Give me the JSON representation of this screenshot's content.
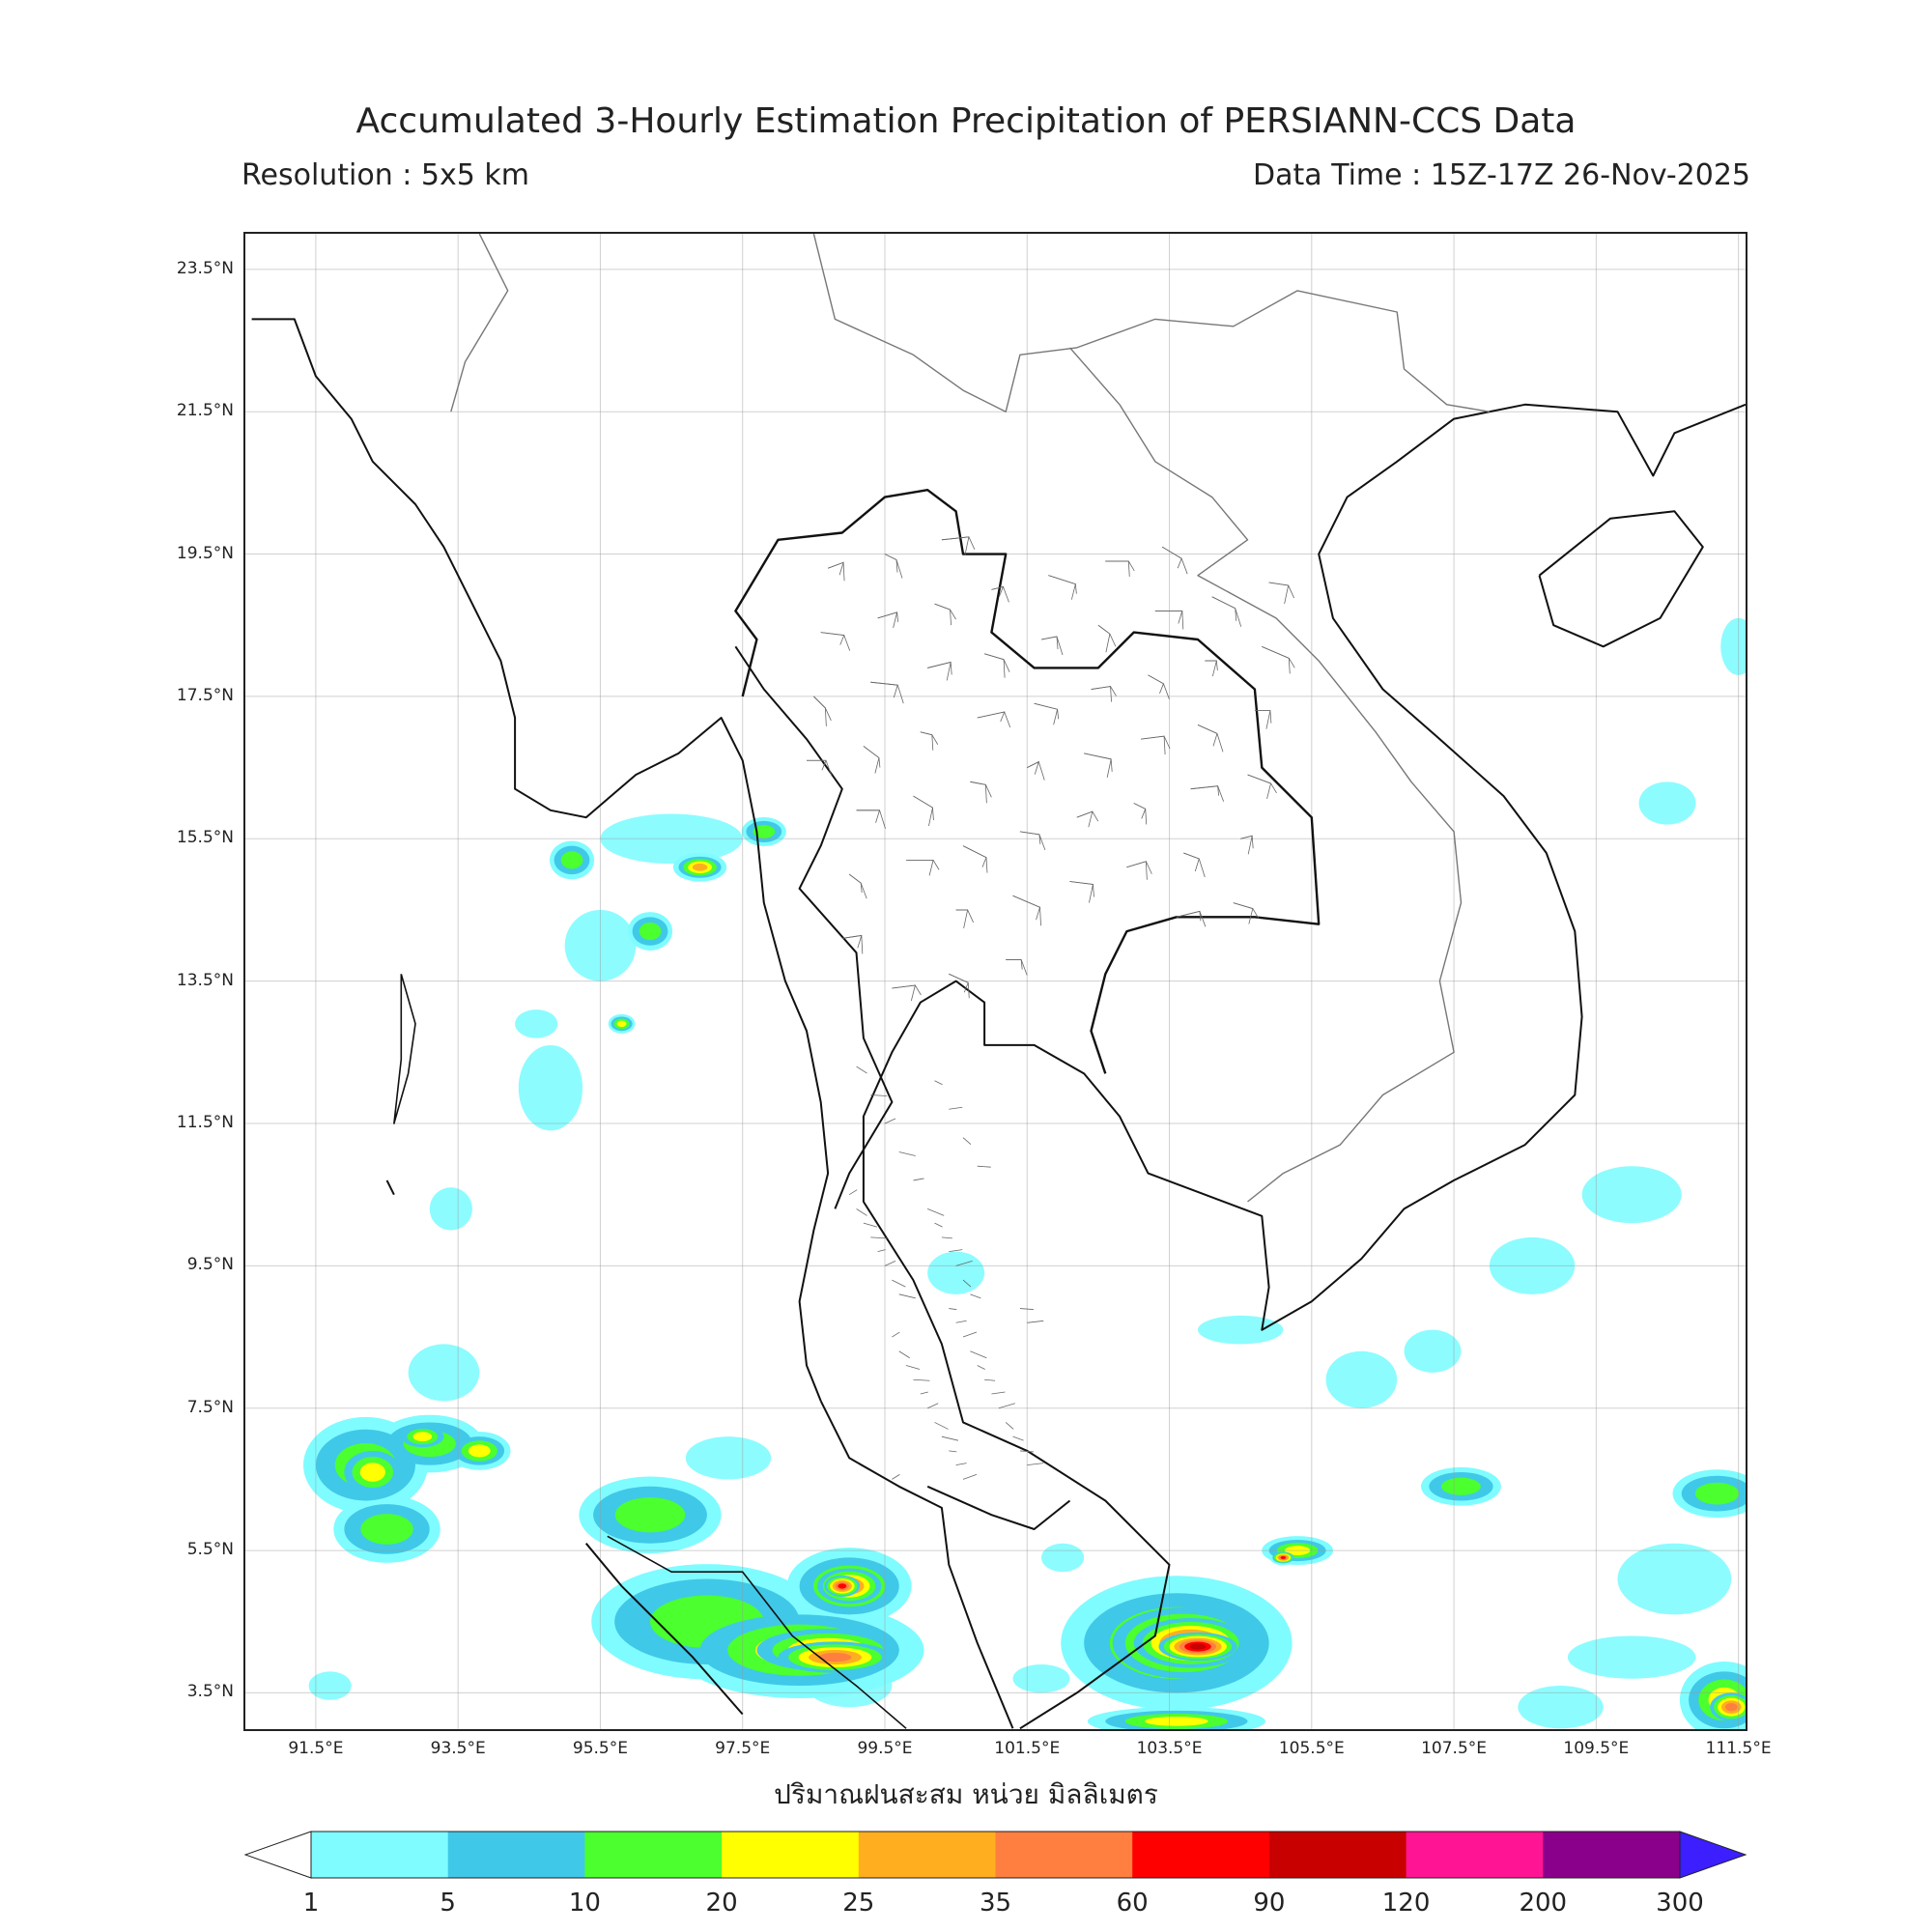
{
  "title": "Accumulated 3-Hourly Estimation Precipitation of PERSIANN-CCS Data",
  "resolution": "Resolution : 5x5 km",
  "data_time": "Data Time : 15Z-17Z 26-Nov-2025",
  "unit_label": "ปริมาณฝนสะสม หน่วย มิลลิเมตร",
  "map": {
    "lat_labels": [
      "23.5°N",
      "21.5°N",
      "19.5°N",
      "17.5°N",
      "15.5°N",
      "13.5°N",
      "11.5°N",
      "9.5°N",
      "7.5°N",
      "5.5°N",
      "3.5°N"
    ],
    "lon_labels": [
      "91.5°E",
      "93.5°E",
      "95.5°E",
      "97.5°E",
      "99.5°E",
      "101.5°E",
      "103.5°E",
      "105.5°E",
      "107.5°E",
      "109.5°E",
      "111.5°E"
    ],
    "lat_range": [
      2.99,
      24.0
    ],
    "lon_range": [
      90.51,
      111.6
    ],
    "grid": true
  },
  "colorbar": {
    "ticks": [
      "1",
      "5",
      "10",
      "20",
      "25",
      "35",
      "60",
      "90",
      "120",
      "200",
      "300"
    ],
    "colors": [
      "#7ffcff",
      "#40c8e8",
      "#4cff2e",
      "#ffff00",
      "#ffae20",
      "#ff7f40",
      "#ff0000",
      "#c80000",
      "#ff1493",
      "#8b008b",
      "#3c1eff"
    ],
    "under_color": "#ffffff",
    "over_color": "#3c1eff"
  },
  "rain_areas": [
    {
      "lon": 92.2,
      "lat": 6.7,
      "rx": 0.7,
      "ry": 0.5,
      "level": 2
    },
    {
      "lon": 92.3,
      "lat": 6.6,
      "rx": 0.4,
      "ry": 0.3,
      "level": 3
    },
    {
      "lon": 93.1,
      "lat": 7.0,
      "rx": 0.6,
      "ry": 0.3,
      "level": 2
    },
    {
      "lon": 93.0,
      "lat": 7.1,
      "rx": 0.3,
      "ry": 0.15,
      "level": 3
    },
    {
      "lon": 93.8,
      "lat": 6.9,
      "rx": 0.35,
      "ry": 0.2,
      "level": 3
    },
    {
      "lon": 92.5,
      "lat": 5.8,
      "rx": 0.6,
      "ry": 0.35,
      "level": 2
    },
    {
      "lon": 96.2,
      "lat": 6.0,
      "rx": 0.8,
      "ry": 0.4,
      "level": 2
    },
    {
      "lon": 97.0,
      "lat": 4.5,
      "rx": 1.3,
      "ry": 0.6,
      "level": 2
    },
    {
      "lon": 98.3,
      "lat": 4.1,
      "rx": 1.4,
      "ry": 0.5,
      "level": 3
    },
    {
      "lon": 98.7,
      "lat": 4.1,
      "rx": 1.0,
      "ry": 0.3,
      "level": 4
    },
    {
      "lon": 98.8,
      "lat": 4.0,
      "rx": 0.8,
      "ry": 0.22,
      "level": 5
    },
    {
      "lon": 99.0,
      "lat": 5.0,
      "rx": 0.7,
      "ry": 0.4,
      "level": 3
    },
    {
      "lon": 99.0,
      "lat": 5.0,
      "rx": 0.45,
      "ry": 0.25,
      "level": 5
    },
    {
      "lon": 98.9,
      "lat": 5.0,
      "rx": 0.25,
      "ry": 0.15,
      "level": 6
    },
    {
      "lon": 103.6,
      "lat": 4.2,
      "rx": 1.3,
      "ry": 0.7,
      "level": 3
    },
    {
      "lon": 103.7,
      "lat": 4.2,
      "rx": 1.0,
      "ry": 0.5,
      "level": 5
    },
    {
      "lon": 103.8,
      "lat": 4.2,
      "rx": 0.8,
      "ry": 0.35,
      "level": 6
    },
    {
      "lon": 103.9,
      "lat": 4.15,
      "rx": 0.55,
      "ry": 0.2,
      "level": 7
    },
    {
      "lon": 103.6,
      "lat": 3.1,
      "rx": 1.0,
      "ry": 0.15,
      "level": 3
    },
    {
      "lon": 105.3,
      "lat": 5.5,
      "rx": 0.4,
      "ry": 0.15,
      "level": 3
    },
    {
      "lon": 105.1,
      "lat": 5.4,
      "rx": 0.15,
      "ry": 0.08,
      "level": 6
    },
    {
      "lon": 107.6,
      "lat": 6.4,
      "rx": 0.45,
      "ry": 0.2,
      "level": 2
    },
    {
      "lon": 111.2,
      "lat": 6.3,
      "rx": 0.5,
      "ry": 0.25,
      "level": 2
    },
    {
      "lon": 111.3,
      "lat": 3.4,
      "rx": 0.5,
      "ry": 0.4,
      "level": 3
    },
    {
      "lon": 111.4,
      "lat": 3.3,
      "rx": 0.3,
      "ry": 0.2,
      "level": 5
    },
    {
      "lon": 96.9,
      "lat": 15.1,
      "rx": 0.3,
      "ry": 0.15,
      "level": 4
    },
    {
      "lon": 97.8,
      "lat": 15.6,
      "rx": 0.25,
      "ry": 0.15,
      "level": 2
    },
    {
      "lon": 96.2,
      "lat": 14.2,
      "rx": 0.25,
      "ry": 0.2,
      "level": 2
    },
    {
      "lon": 95.8,
      "lat": 12.9,
      "rx": 0.15,
      "ry": 0.1,
      "level": 3
    },
    {
      "lon": 95.1,
      "lat": 15.2,
      "rx": 0.25,
      "ry": 0.2,
      "level": 2
    }
  ],
  "light_rain": [
    {
      "lon": 95.5,
      "lat": 14.0,
      "rx": 0.5,
      "ry": 0.5
    },
    {
      "lon": 96.5,
      "lat": 15.5,
      "rx": 1.0,
      "ry": 0.35
    },
    {
      "lon": 94.8,
      "lat": 12.0,
      "rx": 0.45,
      "ry": 0.6
    },
    {
      "lon": 94.6,
      "lat": 12.9,
      "rx": 0.3,
      "ry": 0.2
    },
    {
      "lon": 93.3,
      "lat": 8.0,
      "rx": 0.5,
      "ry": 0.4
    },
    {
      "lon": 93.4,
      "lat": 10.3,
      "rx": 0.3,
      "ry": 0.3
    },
    {
      "lon": 100.5,
      "lat": 9.4,
      "rx": 0.4,
      "ry": 0.3
    },
    {
      "lon": 106.2,
      "lat": 7.9,
      "rx": 0.5,
      "ry": 0.4
    },
    {
      "lon": 110.0,
      "lat": 10.5,
      "rx": 0.7,
      "ry": 0.4
    },
    {
      "lon": 108.6,
      "lat": 9.5,
      "rx": 0.6,
      "ry": 0.4
    },
    {
      "lon": 110.6,
      "lat": 5.1,
      "rx": 0.8,
      "ry": 0.5
    },
    {
      "lon": 110.0,
      "lat": 4.0,
      "rx": 0.9,
      "ry": 0.3
    },
    {
      "lon": 109.0,
      "lat": 3.3,
      "rx": 0.6,
      "ry": 0.3
    },
    {
      "lon": 111.5,
      "lat": 18.2,
      "rx": 0.25,
      "ry": 0.4
    },
    {
      "lon": 110.5,
      "lat": 16.0,
      "rx": 0.4,
      "ry": 0.3
    },
    {
      "lon": 97.3,
      "lat": 6.8,
      "rx": 0.6,
      "ry": 0.3
    },
    {
      "lon": 99.0,
      "lat": 3.6,
      "rx": 0.6,
      "ry": 0.3
    },
    {
      "lon": 102.0,
      "lat": 5.4,
      "rx": 0.3,
      "ry": 0.2
    },
    {
      "lon": 101.7,
      "lat": 3.7,
      "rx": 0.4,
      "ry": 0.2
    },
    {
      "lon": 91.7,
      "lat": 3.6,
      "rx": 0.3,
      "ry": 0.2
    },
    {
      "lon": 107.2,
      "lat": 8.3,
      "rx": 0.4,
      "ry": 0.3
    },
    {
      "lon": 104.5,
      "lat": 8.6,
      "rx": 0.6,
      "ry": 0.2
    }
  ]
}
